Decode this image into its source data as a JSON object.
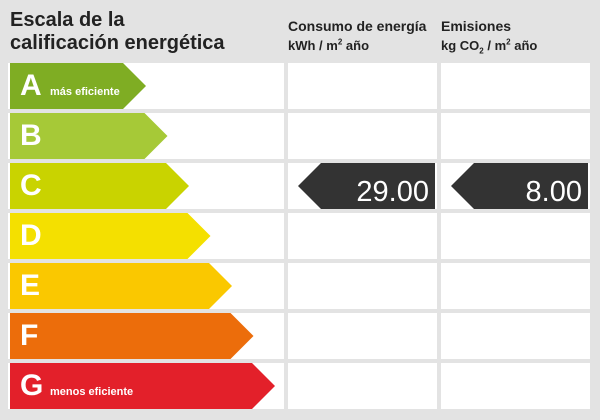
{
  "header": {
    "scale_title_line1": "Escala de la",
    "scale_title_line2": "calificación energética",
    "consumo_title": "Consumo de energía",
    "consumo_unit_prefix": "kWh / m",
    "consumo_unit_sup": "2",
    "consumo_unit_suffix": " año",
    "emisiones_title": "Emisiones",
    "emisiones_unit_prefix": "kg CO",
    "emisiones_unit_sub": "2",
    "emisiones_unit_suffix": " / m",
    "emisiones_unit_sup": "2",
    "emisiones_unit_end": " año"
  },
  "ratings": [
    {
      "letter": "A",
      "caption": "más eficiente",
      "color": "#7fad23"
    },
    {
      "letter": "B",
      "caption": "",
      "color": "#a6c937"
    },
    {
      "letter": "C",
      "caption": "",
      "color": "#c9d300"
    },
    {
      "letter": "D",
      "caption": "",
      "color": "#f4e000"
    },
    {
      "letter": "E",
      "caption": "",
      "color": "#fac800"
    },
    {
      "letter": "F",
      "caption": "",
      "color": "#ec6d0b"
    },
    {
      "letter": "G",
      "caption": "menos eficiente",
      "color": "#e3202a"
    }
  ],
  "result": {
    "consumo_rating": "C",
    "consumo_value": "29.00",
    "emisiones_rating": "C",
    "emisiones_value": "8.00",
    "indicator_color": "#333333"
  }
}
